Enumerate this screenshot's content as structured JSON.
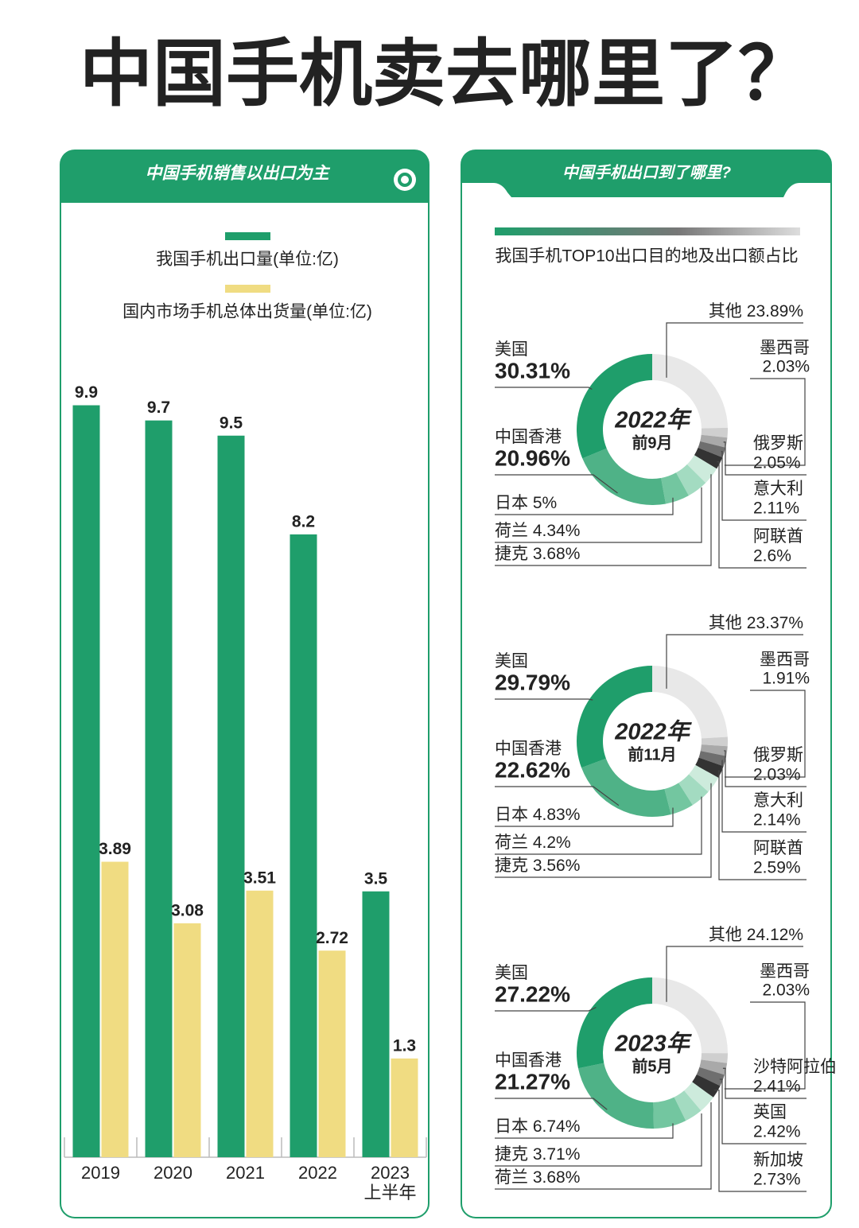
{
  "title": "中国手机卖去哪里了？",
  "right_panel": {
    "title": "中国手机出口到了哪里?",
    "subtitle": "我国手机TOP10出口目的地及出口额占比"
  },
  "chart_data": [
    {
      "type": "bar",
      "title": "中国手机销售以出口为主",
      "categories": [
        "2019",
        "2020",
        "2021",
        "2022",
        "2023\n上半年"
      ],
      "series": [
        {
          "name": "我国手机出口量(单位:亿)",
          "color": "#1f9e6b",
          "values": [
            9.9,
            9.7,
            9.5,
            8.2,
            3.5
          ]
        },
        {
          "name": "国内市场手机总体出货量(单位:亿)",
          "color": "#f0dc82",
          "values": [
            3.89,
            3.08,
            3.51,
            2.72,
            1.3
          ]
        }
      ],
      "ylim": [
        0,
        10
      ]
    },
    {
      "type": "pie",
      "center_title": "2022年",
      "center_subtitle": "前9月",
      "categories": [
        "其他",
        "墨西哥",
        "俄罗斯",
        "意大利",
        "阿联酋",
        "捷克",
        "荷兰",
        "日本",
        "中国香港",
        "美国"
      ],
      "values": [
        23.89,
        2.03,
        2.05,
        2.11,
        2.6,
        3.68,
        4.34,
        5,
        20.96,
        30.31
      ],
      "value_labels": [
        "23.89%",
        "2.03%",
        "2.05%",
        "2.11%",
        "2.6%",
        "3.68%",
        "4.34%",
        "5%",
        "20.96%",
        "30.31%"
      ],
      "colors": [
        "#e8e8e8",
        "#cfcfcf",
        "#a9a9a9",
        "#6f6f6f",
        "#333333",
        "#cdebdc",
        "#a3dbc1",
        "#73c6a0",
        "#4fb287",
        "#1f9e6b"
      ]
    },
    {
      "type": "pie",
      "center_title": "2022年",
      "center_subtitle": "前11月",
      "categories": [
        "其他",
        "墨西哥",
        "俄罗斯",
        "意大利",
        "阿联酋",
        "捷克",
        "荷兰",
        "日本",
        "中国香港",
        "美国"
      ],
      "values": [
        23.37,
        1.91,
        2.03,
        2.14,
        2.59,
        3.56,
        4.2,
        4.83,
        22.62,
        29.79
      ],
      "value_labels": [
        "23.37%",
        "1.91%",
        "2.03%",
        "2.14%",
        "2.59%",
        "3.56%",
        "4.2%",
        "4.83%",
        "22.62%",
        "29.79%"
      ],
      "colors": [
        "#e8e8e8",
        "#cfcfcf",
        "#a9a9a9",
        "#6f6f6f",
        "#333333",
        "#cdebdc",
        "#a3dbc1",
        "#73c6a0",
        "#4fb287",
        "#1f9e6b"
      ]
    },
    {
      "type": "pie",
      "center_title": "2023年",
      "center_subtitle": "前5月",
      "categories": [
        "其他",
        "墨西哥",
        "沙特阿拉伯",
        "英国",
        "新加坡",
        "荷兰",
        "捷克",
        "日本",
        "中国香港",
        "美国"
      ],
      "values": [
        24.12,
        2.03,
        2.41,
        2.42,
        2.73,
        3.68,
        3.71,
        6.74,
        21.27,
        27.22
      ],
      "value_labels": [
        "24.12%",
        "2.03%",
        "2.41%",
        "2.42%",
        "2.73%",
        "3.68%",
        "3.71%",
        "6.74%",
        "21.27%",
        "27.22%"
      ],
      "colors": [
        "#e8e8e8",
        "#cfcfcf",
        "#a9a9a9",
        "#6f6f6f",
        "#333333",
        "#cdebdc",
        "#a3dbc1",
        "#73c6a0",
        "#4fb287",
        "#1f9e6b"
      ]
    }
  ]
}
